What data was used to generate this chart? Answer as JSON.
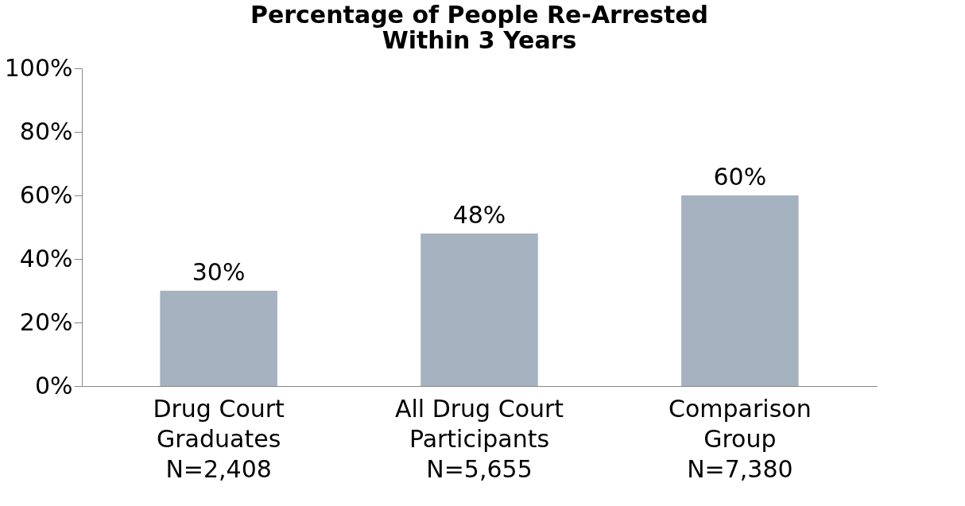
{
  "chart_data": {
    "type": "bar",
    "title": "Percentage of People Re-Arrested\nWithin 3 Years",
    "categories": [
      "Drug Court\nGraduates\nN=2,408",
      "All Drug Court\nParticipants\nN=5,655",
      "Comparison\nGroup\nN=7,380"
    ],
    "values": [
      30,
      48,
      60
    ],
    "color": "#a5b2c0",
    "value_labels": [
      "30%",
      "48%",
      "60%"
    ],
    "ylim": [
      0,
      100
    ],
    "yticks": [
      {
        "value": 0,
        "label": "0%"
      },
      {
        "value": 20,
        "label": "20%"
      },
      {
        "value": 40,
        "label": "40%"
      },
      {
        "value": 60,
        "label": "60%"
      },
      {
        "value": 80,
        "label": "80%"
      },
      {
        "value": 100,
        "label": "100%"
      }
    ],
    "grid": false
  }
}
